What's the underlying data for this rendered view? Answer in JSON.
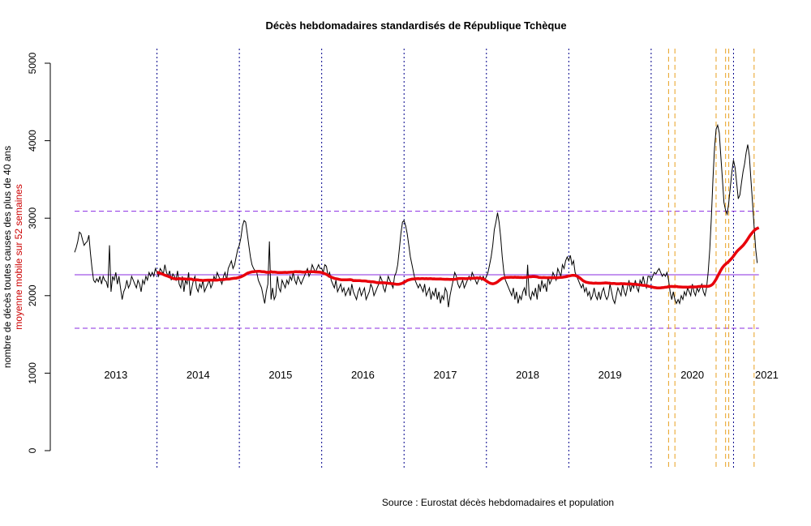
{
  "chart_data": {
    "type": "line",
    "title": "Décès hebdomadaires standardisés de République Tchèque",
    "ylabel": "nombre de décès toutes causes des plus de 40 ans",
    "ylabel2": "moyenne mobile sur 52 semaines",
    "source": "Source : Eurostat décès hebdomadaires et population",
    "ylim": [
      0,
      5000
    ],
    "yticks": [
      "0",
      "1000",
      "2000",
      "3000",
      "4000",
      "5000"
    ],
    "start_year": 2013,
    "year_labels": [
      "2013",
      "2014",
      "2015",
      "2016",
      "2017",
      "2018",
      "2019",
      "2020",
      "2021"
    ],
    "reference_lines": {
      "mean": 2270,
      "upper": 3090,
      "lower": 1580
    },
    "orange_markers": [
      {
        "year": 2020,
        "week": 12
      },
      {
        "year": 2020,
        "week": 16
      },
      {
        "year": 2020,
        "week": 42
      },
      {
        "year": 2020,
        "week": 48
      },
      {
        "year": 2020,
        "week": 50
      },
      {
        "year": 2021,
        "week": 14
      }
    ],
    "moving_average_window": 52,
    "colors": {
      "series": "#000000",
      "moving_average": "#e8000b",
      "year_lines": "#00008b",
      "ref_lines": "#8a2be2",
      "orange": "#e8a020",
      "ylabel2": "#cc0000"
    },
    "weekly": {
      "2013": [
        2560,
        2620,
        2700,
        2820,
        2800,
        2720,
        2650,
        2680,
        2700,
        2780,
        2550,
        2350,
        2200,
        2170,
        2220,
        2180,
        2250,
        2150,
        2250,
        2200,
        2180,
        2100,
        2650,
        2050,
        2250,
        2200,
        2300,
        2150,
        2250,
        2100,
        1950,
        2050,
        2100,
        2200,
        2100,
        2150,
        2250,
        2200,
        2150,
        2100,
        2200,
        2150,
        2050,
        2200,
        2150,
        2250,
        2200,
        2300,
        2250,
        2300,
        2250,
        2350
      ],
      "2014": [
        2300,
        2250,
        2350,
        2320,
        2280,
        2400,
        2300,
        2250,
        2320,
        2200,
        2280,
        2250,
        2200,
        2320,
        2150,
        2100,
        2250,
        2050,
        2200,
        2150,
        2300,
        2000,
        2100,
        2200,
        2250,
        2100,
        2050,
        2150,
        2100,
        2200,
        2050,
        2100,
        2150,
        2200,
        2100,
        2150,
        2250,
        2200,
        2300,
        2250,
        2200,
        2150,
        2250,
        2300,
        2200,
        2350,
        2400,
        2450,
        2350,
        2400,
        2500,
        2600
      ],
      "2015": [
        2650,
        2750,
        2900,
        2970,
        2950,
        2800,
        2650,
        2500,
        2400,
        2350,
        2320,
        2300,
        2200,
        2150,
        2100,
        2000,
        1900,
        2050,
        2150,
        2700,
        1950,
        2100,
        1950,
        2000,
        2250,
        2100,
        2050,
        2200,
        2150,
        2100,
        2200,
        2150,
        2250,
        2200,
        2300,
        2200,
        2150,
        2250,
        2200,
        2150,
        2200,
        2250,
        2300,
        2350,
        2250,
        2300,
        2400,
        2350,
        2300,
        2350,
        2400,
        2350
      ],
      "2016": [
        2350,
        2300,
        2400,
        2380,
        2250,
        2300,
        2200,
        2150,
        2100,
        2200,
        2050,
        2100,
        2150,
        2050,
        2100,
        2000,
        2050,
        2100,
        2000,
        2150,
        2050,
        2000,
        1950,
        2050,
        2100,
        2000,
        2050,
        2100,
        1950,
        2000,
        2050,
        2150,
        2100,
        2000,
        2050,
        2100,
        2150,
        2250,
        2200,
        2100,
        2050,
        2150,
        2250,
        2200,
        2150,
        2100,
        2250,
        2300,
        2400,
        2600,
        2800,
        2950
      ],
      "2017": [
        2970,
        2900,
        2800,
        2650,
        2500,
        2400,
        2300,
        2200,
        2150,
        2100,
        2150,
        2100,
        2050,
        2150,
        2000,
        2050,
        2100,
        1950,
        2050,
        2000,
        2100,
        1950,
        2050,
        1900,
        2000,
        1950,
        2100,
        2050,
        1850,
        2000,
        2100,
        2200,
        2300,
        2250,
        2150,
        2100,
        2150,
        2200,
        2100,
        2150,
        2200,
        2250,
        2200,
        2300,
        2250,
        2200,
        2150,
        2200,
        2250,
        2200,
        2250,
        2200
      ],
      "2018": [
        2250,
        2300,
        2400,
        2500,
        2650,
        2850,
        2950,
        3070,
        2950,
        2750,
        2500,
        2300,
        2200,
        2150,
        2100,
        2050,
        2000,
        2100,
        1950,
        2050,
        1900,
        2000,
        1950,
        2050,
        2100,
        2000,
        2400,
        2000,
        1950,
        2050,
        2000,
        2100,
        1950,
        2150,
        2050,
        2200,
        2100,
        2150,
        2050,
        2250,
        2150,
        2200,
        2300,
        2250,
        2200,
        2350,
        2300,
        2250,
        2400,
        2350,
        2450,
        2500
      ],
      "2019": [
        2450,
        2520,
        2400,
        2450,
        2300,
        2250,
        2200,
        2150,
        2100,
        2150,
        2050,
        2100,
        2000,
        2050,
        1950,
        2000,
        2100,
        2000,
        1950,
        2050,
        1950,
        2050,
        2100,
        2000,
        1950,
        2000,
        2150,
        2050,
        1950,
        1900,
        2000,
        2100,
        2050,
        2000,
        2150,
        2050,
        2000,
        2100,
        2200,
        2050,
        2150,
        2100,
        2200,
        2100,
        2050,
        2200,
        2150,
        2250,
        2150,
        2100,
        2250,
        2250
      ],
      "2020": [
        2200,
        2250,
        2300,
        2280,
        2320,
        2350,
        2300,
        2250,
        2280,
        2250,
        2300,
        2200,
        2050,
        1950,
        2050,
        1950,
        1900,
        1950,
        1900,
        2000,
        1950,
        2050,
        2000,
        2100,
        2050,
        2000,
        2150,
        2050,
        2000,
        2100,
        2050,
        2100,
        2150,
        2050,
        2000,
        2100,
        2300,
        2600,
        3000,
        3500,
        3900,
        4150,
        4200,
        4100,
        3800,
        3500,
        3200,
        3100,
        3050,
        3200,
        3400,
        3600
      ],
      "2021": [
        3750,
        3650,
        3450,
        3250,
        3300,
        3450,
        3600,
        3700,
        3850,
        3950,
        3800,
        3500,
        3200,
        2900,
        2600,
        2420
      ]
    }
  }
}
